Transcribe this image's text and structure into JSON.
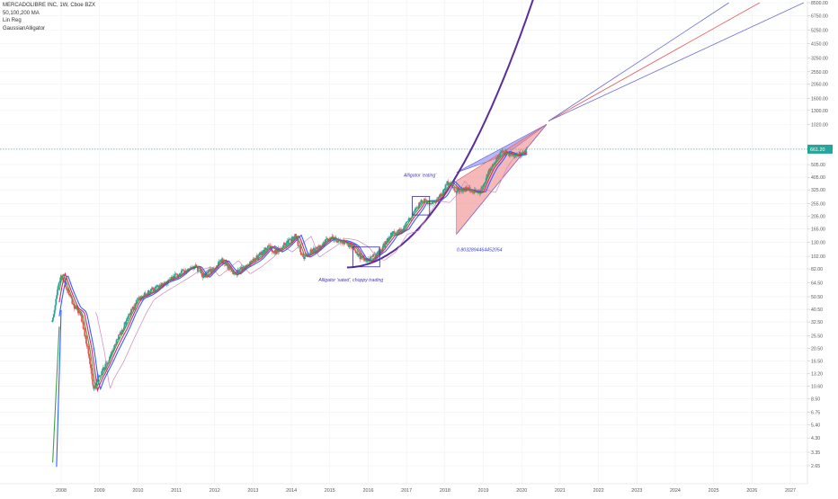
{
  "legend": {
    "symbol_line": "MERCADOLIBRE INC, 1W, Cboe BZX",
    "ma_line": "50,100,200 MA",
    "linreg_line": "Lin Reg",
    "alligator_line": "GaussianAlligator"
  },
  "colors": {
    "candle_up": "#26a69a",
    "candle_down": "#ef5350",
    "alligator_jaw": "#2962ff",
    "alligator_teeth": "#e91e63",
    "alligator_lips": "#43a047",
    "ma_line": "#c98bbd",
    "curve": "#5b2c9e",
    "fan_blue": "#6a6ad8",
    "fan_red": "#e35a5a",
    "wedge_blue": "#7b7bf0",
    "wedge_red": "#f08a8a",
    "price_badge": "#26a69a",
    "grid": "#eef0f3",
    "text": "#555555"
  },
  "chart_data": {
    "type": "candlestick",
    "scale": "log",
    "x_tick_labels": [
      "2008",
      "2009",
      "2010",
      "2011",
      "2012",
      "2013",
      "2014",
      "2015",
      "2016",
      "2017",
      "2018",
      "2019",
      "2020",
      "2021",
      "2022",
      "2023",
      "2024",
      "2025",
      "2026",
      "2027"
    ],
    "y_tick_labels": [
      "8500.00",
      "6750.00",
      "5250.00",
      "4150.00",
      "3250.00",
      "2550.00",
      "2050.00",
      "1600.00",
      "1300.00",
      "1020.00",
      "661.20",
      "505.00",
      "405.00",
      "325.00",
      "255.00",
      "205.00",
      "165.00",
      "130.00",
      "102.00",
      "82.00",
      "64.50",
      "50.50",
      "40.50",
      "32.50",
      "25.50",
      "20.50",
      "16.50",
      "13.20",
      "10.60",
      "8.50",
      "6.75",
      "5.40",
      "4.30",
      "3.35",
      "2.65"
    ],
    "last_price_label": "661.20",
    "annotations": {
      "alligator_eating": "Alligator 'eating'",
      "alligator_sated": "Alligator 'sated', choppy trading",
      "regression_value": "0.8032894464452054"
    },
    "price_path": [
      {
        "t": 2007.75,
        "p": 30
      },
      {
        "t": 2007.9,
        "p": 55
      },
      {
        "t": 2008.0,
        "p": 75
      },
      {
        "t": 2008.15,
        "p": 58
      },
      {
        "t": 2008.35,
        "p": 42
      },
      {
        "t": 2008.5,
        "p": 38
      },
      {
        "t": 2008.7,
        "p": 20
      },
      {
        "t": 2008.85,
        "p": 10
      },
      {
        "t": 2008.95,
        "p": 12
      },
      {
        "t": 2009.2,
        "p": 16
      },
      {
        "t": 2009.5,
        "p": 25
      },
      {
        "t": 2009.8,
        "p": 38
      },
      {
        "t": 2010.0,
        "p": 48
      },
      {
        "t": 2010.3,
        "p": 55
      },
      {
        "t": 2010.6,
        "p": 62
      },
      {
        "t": 2010.9,
        "p": 70
      },
      {
        "t": 2011.2,
        "p": 80
      },
      {
        "t": 2011.5,
        "p": 85
      },
      {
        "t": 2011.7,
        "p": 72
      },
      {
        "t": 2011.9,
        "p": 80
      },
      {
        "t": 2012.2,
        "p": 95
      },
      {
        "t": 2012.5,
        "p": 75
      },
      {
        "t": 2012.8,
        "p": 85
      },
      {
        "t": 2013.1,
        "p": 100
      },
      {
        "t": 2013.4,
        "p": 120
      },
      {
        "t": 2013.6,
        "p": 110
      },
      {
        "t": 2013.9,
        "p": 130
      },
      {
        "t": 2014.1,
        "p": 145
      },
      {
        "t": 2014.3,
        "p": 100
      },
      {
        "t": 2014.5,
        "p": 110
      },
      {
        "t": 2014.8,
        "p": 125
      },
      {
        "t": 2015.0,
        "p": 140
      },
      {
        "t": 2015.3,
        "p": 135
      },
      {
        "t": 2015.6,
        "p": 120
      },
      {
        "t": 2015.8,
        "p": 100
      },
      {
        "t": 2016.0,
        "p": 95
      },
      {
        "t": 2016.3,
        "p": 110
      },
      {
        "t": 2016.6,
        "p": 150
      },
      {
        "t": 2016.9,
        "p": 160
      },
      {
        "t": 2017.1,
        "p": 200
      },
      {
        "t": 2017.4,
        "p": 270
      },
      {
        "t": 2017.7,
        "p": 260
      },
      {
        "t": 2017.9,
        "p": 300
      },
      {
        "t": 2018.1,
        "p": 380
      },
      {
        "t": 2018.3,
        "p": 320
      },
      {
        "t": 2018.6,
        "p": 330
      },
      {
        "t": 2018.9,
        "p": 310
      },
      {
        "t": 2019.2,
        "p": 480
      },
      {
        "t": 2019.5,
        "p": 640
      },
      {
        "t": 2019.8,
        "p": 580
      },
      {
        "t": 2020.0,
        "p": 620
      },
      {
        "t": 2020.15,
        "p": 661.2
      }
    ]
  }
}
